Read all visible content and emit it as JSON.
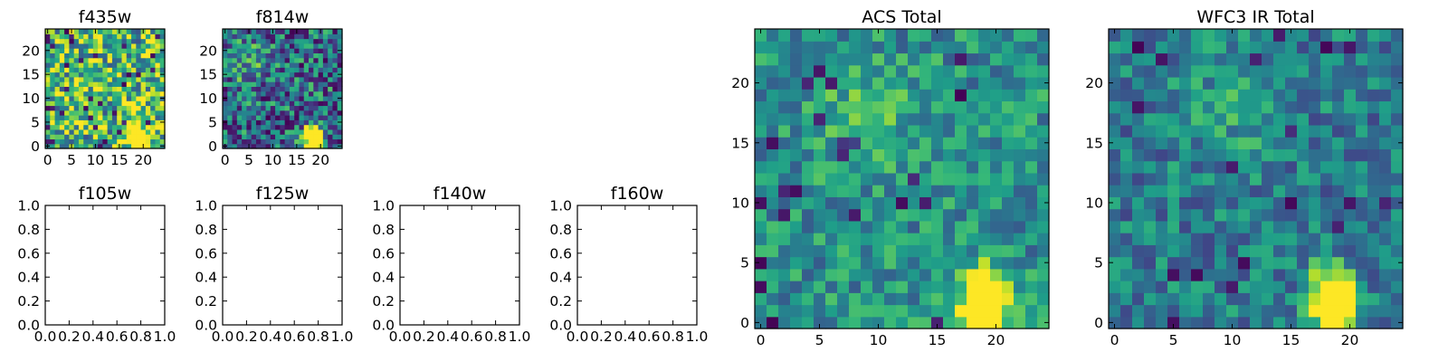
{
  "chart_data": [
    {
      "type": "heatmap",
      "title": "f435w",
      "xticks": [
        "0",
        "5",
        "10",
        "15",
        "20"
      ],
      "yticks": [
        "0",
        "5",
        "10",
        "15",
        "20"
      ],
      "xlim": [
        -0.5,
        24.5
      ],
      "ylim": [
        -0.5,
        24.5
      ],
      "grid": false,
      "peak": {
        "x": 18.5,
        "y": 1.5
      },
      "colormap": "viridis",
      "variant": "a"
    },
    {
      "type": "heatmap",
      "title": "f814w",
      "xticks": [
        "0",
        "5",
        "10",
        "15",
        "20"
      ],
      "yticks": [
        "0",
        "5",
        "10",
        "15",
        "20"
      ],
      "xlim": [
        -0.5,
        24.5
      ],
      "ylim": [
        -0.5,
        24.5
      ],
      "grid": false,
      "peak": {
        "x": 18.5,
        "y": 1.5
      },
      "colormap": "viridis",
      "variant": "b"
    },
    {
      "type": "empty",
      "title": "f105w",
      "xticks": [
        "0.0",
        "0.2",
        "0.4",
        "0.6",
        "0.8",
        "1.0"
      ],
      "yticks": [
        "0.0",
        "0.2",
        "0.4",
        "0.6",
        "0.8",
        "1.0"
      ],
      "xlim": [
        0,
        1
      ],
      "ylim": [
        0,
        1
      ]
    },
    {
      "type": "empty",
      "title": "f125w",
      "xticks": [
        "0.0",
        "0.2",
        "0.4",
        "0.6",
        "0.8",
        "1.0"
      ],
      "yticks": [
        "0.0",
        "0.2",
        "0.4",
        "0.6",
        "0.8",
        "1.0"
      ],
      "xlim": [
        0,
        1
      ],
      "ylim": [
        0,
        1
      ]
    },
    {
      "type": "empty",
      "title": "f140w",
      "xticks": [
        "0.0",
        "0.2",
        "0.4",
        "0.6",
        "0.8",
        "1.0"
      ],
      "yticks": [
        "0.0",
        "0.2",
        "0.4",
        "0.6",
        "0.8",
        "1.0"
      ],
      "xlim": [
        0,
        1
      ],
      "ylim": [
        0,
        1
      ]
    },
    {
      "type": "empty",
      "title": "f160w",
      "xticks": [
        "0.0",
        "0.2",
        "0.4",
        "0.6",
        "0.8",
        "1.0"
      ],
      "yticks": [
        "0.0",
        "0.2",
        "0.4",
        "0.6",
        "0.8",
        "1.0"
      ],
      "xlim": [
        0,
        1
      ],
      "ylim": [
        0,
        1
      ]
    },
    {
      "type": "heatmap",
      "title": "ACS Total",
      "xticks": [
        "0",
        "5",
        "10",
        "15",
        "20"
      ],
      "yticks": [
        "0",
        "5",
        "10",
        "15",
        "20"
      ],
      "xlim": [
        -0.5,
        24.5
      ],
      "ylim": [
        -0.5,
        24.5
      ],
      "grid": false,
      "peak": {
        "x": 19.0,
        "y": 1.5
      },
      "colormap": "viridis",
      "variant": "c"
    },
    {
      "type": "heatmap",
      "title": "WFC3 IR Total",
      "xticks": [
        "0",
        "5",
        "10",
        "15",
        "20"
      ],
      "yticks": [
        "0",
        "5",
        "10",
        "15",
        "20"
      ],
      "xlim": [
        -0.5,
        24.5
      ],
      "ylim": [
        -0.5,
        24.5
      ],
      "grid": false,
      "peak": {
        "x": 18.5,
        "y": 1.5
      },
      "colormap": "viridis",
      "variant": "d"
    }
  ]
}
